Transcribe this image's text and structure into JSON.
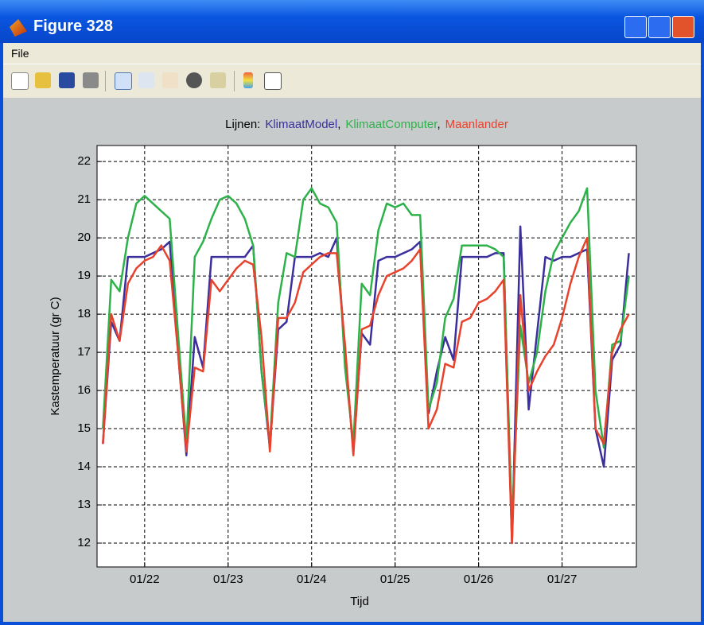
{
  "window": {
    "title": "Figure 328"
  },
  "menu": [
    "File"
  ],
  "chart_data": {
    "type": "line",
    "title": "Lijnen:",
    "legend_separator": ",",
    "xlabel": "Tijd",
    "ylabel": "Kastemperatuur (gr C)",
    "xlim": [
      21.43,
      27.89
    ],
    "ylim": [
      11.375,
      22.42
    ],
    "xticks": [
      {
        "value": 22,
        "label": "01/22"
      },
      {
        "value": 23,
        "label": "01/23"
      },
      {
        "value": 24,
        "label": "01/24"
      },
      {
        "value": 25,
        "label": "01/25"
      },
      {
        "value": 26,
        "label": "01/26"
      },
      {
        "value": 27,
        "label": "01/27"
      }
    ],
    "yticks": [
      12,
      13,
      14,
      15,
      16,
      17,
      18,
      19,
      20,
      21,
      22
    ],
    "grid": true,
    "x": [
      21.5,
      21.6,
      21.7,
      21.8,
      21.9,
      22.0,
      22.1,
      22.2,
      22.3,
      22.4,
      22.5,
      22.6,
      22.7,
      22.8,
      22.9,
      23.0,
      23.1,
      23.2,
      23.3,
      23.4,
      23.5,
      23.6,
      23.7,
      23.8,
      23.9,
      24.0,
      24.1,
      24.2,
      24.3,
      24.4,
      24.5,
      24.6,
      24.7,
      24.8,
      24.9,
      25.0,
      25.1,
      25.2,
      25.3,
      25.4,
      25.5,
      25.6,
      25.7,
      25.8,
      25.9,
      26.0,
      26.1,
      26.2,
      26.3,
      26.4,
      26.5,
      26.6,
      26.7,
      26.8,
      26.9,
      27.0,
      27.1,
      27.2,
      27.3,
      27.4,
      27.5,
      27.6,
      27.7,
      27.8
    ],
    "series": [
      {
        "name": "KlimaatModel",
        "color": "#3a2f9c",
        "values": [
          14.6,
          17.8,
          17.3,
          19.5,
          19.5,
          19.5,
          19.6,
          19.7,
          19.9,
          17.0,
          14.3,
          17.4,
          16.6,
          19.5,
          19.5,
          19.5,
          19.5,
          19.5,
          19.8,
          16.5,
          14.5,
          17.6,
          17.8,
          19.5,
          19.5,
          19.5,
          19.6,
          19.5,
          20.0,
          17.0,
          14.4,
          17.5,
          17.2,
          19.4,
          19.5,
          19.5,
          19.6,
          19.7,
          19.9,
          15.4,
          16.5,
          17.4,
          16.8,
          19.5,
          19.5,
          19.5,
          19.5,
          19.6,
          19.6,
          12.0,
          20.3,
          15.5,
          17.5,
          19.5,
          19.4,
          19.5,
          19.5,
          19.6,
          19.7,
          15.0,
          14.0,
          16.8,
          17.2,
          19.6
        ]
      },
      {
        "name": "KlimaatComputer",
        "color": "#2db24a",
        "values": [
          15.0,
          18.9,
          18.6,
          20.0,
          20.9,
          21.1,
          20.9,
          20.7,
          20.5,
          17.5,
          14.6,
          19.5,
          19.9,
          20.5,
          21.0,
          21.1,
          20.9,
          20.5,
          19.8,
          16.5,
          14.6,
          18.3,
          19.6,
          19.5,
          21.0,
          21.3,
          20.9,
          20.8,
          20.4,
          16.6,
          14.6,
          18.8,
          18.5,
          20.2,
          20.9,
          20.8,
          20.9,
          20.6,
          20.6,
          15.5,
          16.2,
          17.9,
          18.4,
          19.8,
          19.8,
          19.8,
          19.8,
          19.7,
          19.5,
          12.5,
          17.7,
          16.2,
          17.0,
          18.6,
          19.6,
          20.0,
          20.4,
          20.7,
          21.3,
          16.0,
          14.5,
          17.2,
          17.3,
          19.0
        ]
      },
      {
        "name": "Maanlander",
        "color": "#e8412c",
        "values": [
          14.6,
          18.0,
          17.3,
          18.8,
          19.2,
          19.4,
          19.5,
          19.8,
          19.4,
          17.0,
          14.4,
          16.6,
          16.5,
          18.9,
          18.6,
          18.9,
          19.2,
          19.4,
          19.3,
          17.4,
          14.4,
          17.9,
          17.9,
          18.3,
          19.1,
          19.3,
          19.5,
          19.6,
          19.6,
          17.2,
          14.3,
          17.6,
          17.7,
          18.5,
          19.0,
          19.1,
          19.2,
          19.4,
          19.7,
          15.0,
          15.5,
          16.7,
          16.6,
          17.8,
          17.9,
          18.3,
          18.4,
          18.6,
          18.9,
          12.0,
          18.5,
          16.0,
          16.5,
          16.9,
          17.2,
          17.9,
          18.8,
          19.5,
          20.0,
          15.0,
          14.6,
          17.0,
          17.6,
          18.0
        ]
      }
    ]
  }
}
